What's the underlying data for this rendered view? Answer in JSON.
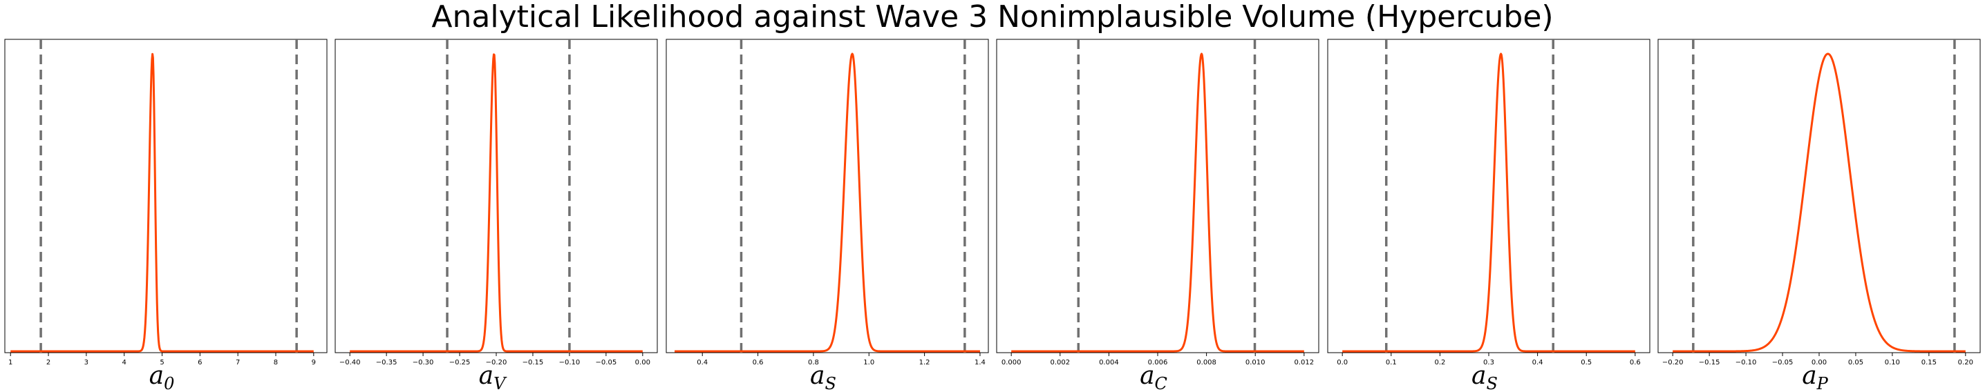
{
  "figure": {
    "title": "Analytical Likelihood against Wave 3 Nonimplausible Volume (Hypercube)",
    "line_color": "#ff4500",
    "bound_color": "#707070"
  },
  "chart_data": [
    {
      "type": "line",
      "xlabel_base": "a",
      "xlabel_sub": "0",
      "xlim": [
        0.85,
        9.35
      ],
      "ticks": [
        1,
        2,
        3,
        4,
        5,
        6,
        7,
        8,
        9
      ],
      "tick_labels": [
        "1",
        "2",
        "3",
        "4",
        "5",
        "6",
        "7",
        "8",
        "9"
      ],
      "curve_range": [
        1.0,
        9.0
      ],
      "peak": 4.75,
      "sigma": 0.07,
      "skew": 0.25,
      "bounds": [
        1.8,
        8.55
      ],
      "grid": false,
      "legend": false
    },
    {
      "type": "line",
      "xlabel_base": "a",
      "xlabel_sub": "V",
      "xlim": [
        -0.42,
        0.02
      ],
      "ticks": [
        -0.4,
        -0.35,
        -0.3,
        -0.25,
        -0.2,
        -0.15,
        -0.1,
        -0.05,
        0.0
      ],
      "tick_labels": [
        "−0.40",
        "−0.35",
        "−0.30",
        "−0.25",
        "−0.20",
        "−0.15",
        "−0.10",
        "−0.05",
        "0.00"
      ],
      "curve_range": [
        -0.4,
        0.0
      ],
      "peak": -0.203,
      "sigma": 0.0045,
      "skew": 0.2,
      "bounds": [
        -0.267,
        -0.1
      ],
      "grid": false,
      "legend": false
    },
    {
      "type": "line",
      "xlabel_base": "a",
      "xlabel_sub": "S",
      "xlim": [
        0.27,
        1.43
      ],
      "ticks": [
        0.4,
        0.6,
        0.8,
        1.0,
        1.2,
        1.4
      ],
      "tick_labels": [
        "0.4",
        "0.6",
        "0.8",
        "1.0",
        "1.2",
        "1.4"
      ],
      "curve_range": [
        0.3,
        1.4
      ],
      "peak": 0.94,
      "sigma": 0.025,
      "skew": 0.1,
      "bounds": [
        0.54,
        1.345
      ],
      "grid": false,
      "legend": false
    },
    {
      "type": "line",
      "xlabel_base": "a",
      "xlabel_sub": "C",
      "xlim": [
        -0.0006,
        0.0126
      ],
      "ticks": [
        0.0,
        0.002,
        0.004,
        0.006,
        0.008,
        0.01,
        0.012
      ],
      "tick_labels": [
        "0.000",
        "0.002",
        "0.004",
        "0.006",
        "0.008",
        "0.010",
        "0.012"
      ],
      "curve_range": [
        0.0,
        0.012
      ],
      "peak": 0.0078,
      "sigma": 0.00024,
      "skew": 0.1,
      "bounds": [
        0.00275,
        0.00998
      ],
      "grid": false,
      "legend": false
    },
    {
      "type": "line",
      "xlabel_base": "a",
      "xlabel_sub": "S",
      "xlim": [
        -0.03,
        0.63
      ],
      "ticks": [
        0.0,
        0.1,
        0.2,
        0.3,
        0.4,
        0.5,
        0.6
      ],
      "tick_labels": [
        "0.0",
        "0.1",
        "0.2",
        "0.3",
        "0.4",
        "0.5",
        "0.6"
      ],
      "curve_range": [
        0.0,
        0.6
      ],
      "peak": 0.325,
      "sigma": 0.0125,
      "skew": 0.1,
      "bounds": [
        0.09,
        0.432
      ],
      "grid": false,
      "legend": false
    },
    {
      "type": "line",
      "xlabel_base": "a",
      "xlabel_sub": "P",
      "xlim": [
        -0.22,
        0.22
      ],
      "ticks": [
        -0.2,
        -0.15,
        -0.1,
        -0.05,
        0.0,
        0.05,
        0.1,
        0.15,
        0.2
      ],
      "tick_labels": [
        "−0.20",
        "−0.15",
        "−0.10",
        "−0.05",
        "0.00",
        "0.05",
        "0.10",
        "0.15",
        "0.20"
      ],
      "curve_range": [
        -0.2,
        0.2
      ],
      "peak": 0.012,
      "sigma": 0.03,
      "skew": 0.0,
      "bounds": [
        -0.172,
        0.185
      ],
      "grid": false,
      "legend": false
    }
  ]
}
